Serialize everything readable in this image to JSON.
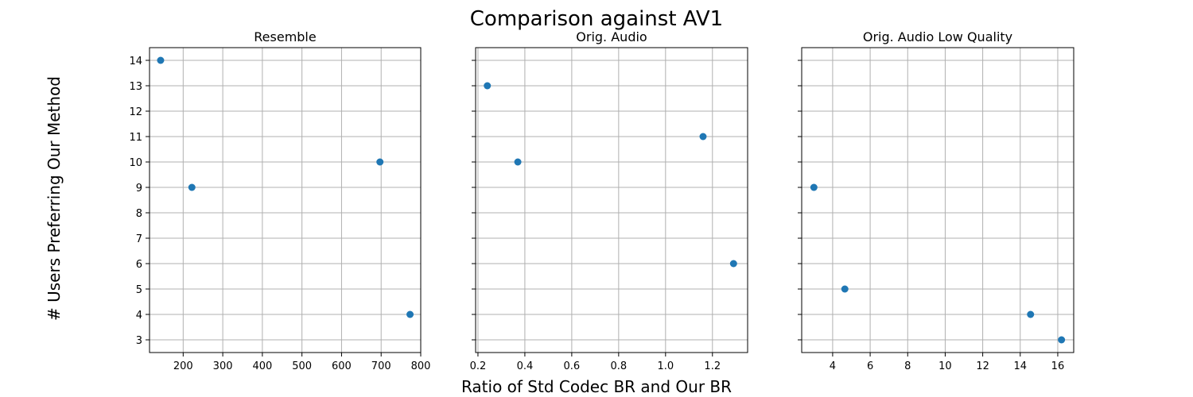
{
  "figure": {
    "title": "Comparison against AV1",
    "xlabel": "Ratio of Std Codec BR and Our BR",
    "ylabel": "# Users Preferring Our Method",
    "marker_color": "#1f77b4",
    "grid_color": "#b0b0b0"
  },
  "chart_data": [
    {
      "type": "scatter",
      "title": "Resemble",
      "x": [
        143,
        222,
        697,
        773
      ],
      "y": [
        14,
        9,
        10,
        4
      ],
      "xlim": [
        115,
        800
      ],
      "ylim": [
        2.5,
        14.5
      ],
      "xticks": [
        200,
        300,
        400,
        500,
        600,
        700,
        800
      ],
      "yticks": [
        3,
        4,
        5,
        6,
        7,
        8,
        9,
        10,
        11,
        12,
        13,
        14
      ],
      "show_yticklabels": true,
      "grid": true
    },
    {
      "type": "scatter",
      "title": "Orig. Audio",
      "x": [
        0.24,
        0.37,
        1.16,
        1.29
      ],
      "y": [
        13,
        10,
        11,
        6
      ],
      "xlim": [
        0.19,
        1.35
      ],
      "ylim": [
        2.5,
        14.5
      ],
      "xticks": [
        0.2,
        0.4,
        0.6,
        0.8,
        1.0,
        1.2
      ],
      "yticks": [
        3,
        4,
        5,
        6,
        7,
        8,
        9,
        10,
        11,
        12,
        13,
        14
      ],
      "show_yticklabels": false,
      "grid": true
    },
    {
      "type": "scatter",
      "title": "Orig. Audio Low Quality",
      "x": [
        3.0,
        4.65,
        14.55,
        16.2
      ],
      "y": [
        9,
        5,
        4,
        3
      ],
      "xlim": [
        2.35,
        16.85
      ],
      "ylim": [
        2.5,
        14.5
      ],
      "xticks": [
        4,
        6,
        8,
        10,
        12,
        14,
        16
      ],
      "yticks": [
        3,
        4,
        5,
        6,
        7,
        8,
        9,
        10,
        11,
        12,
        13,
        14
      ],
      "show_yticklabels": false,
      "grid": true
    }
  ]
}
